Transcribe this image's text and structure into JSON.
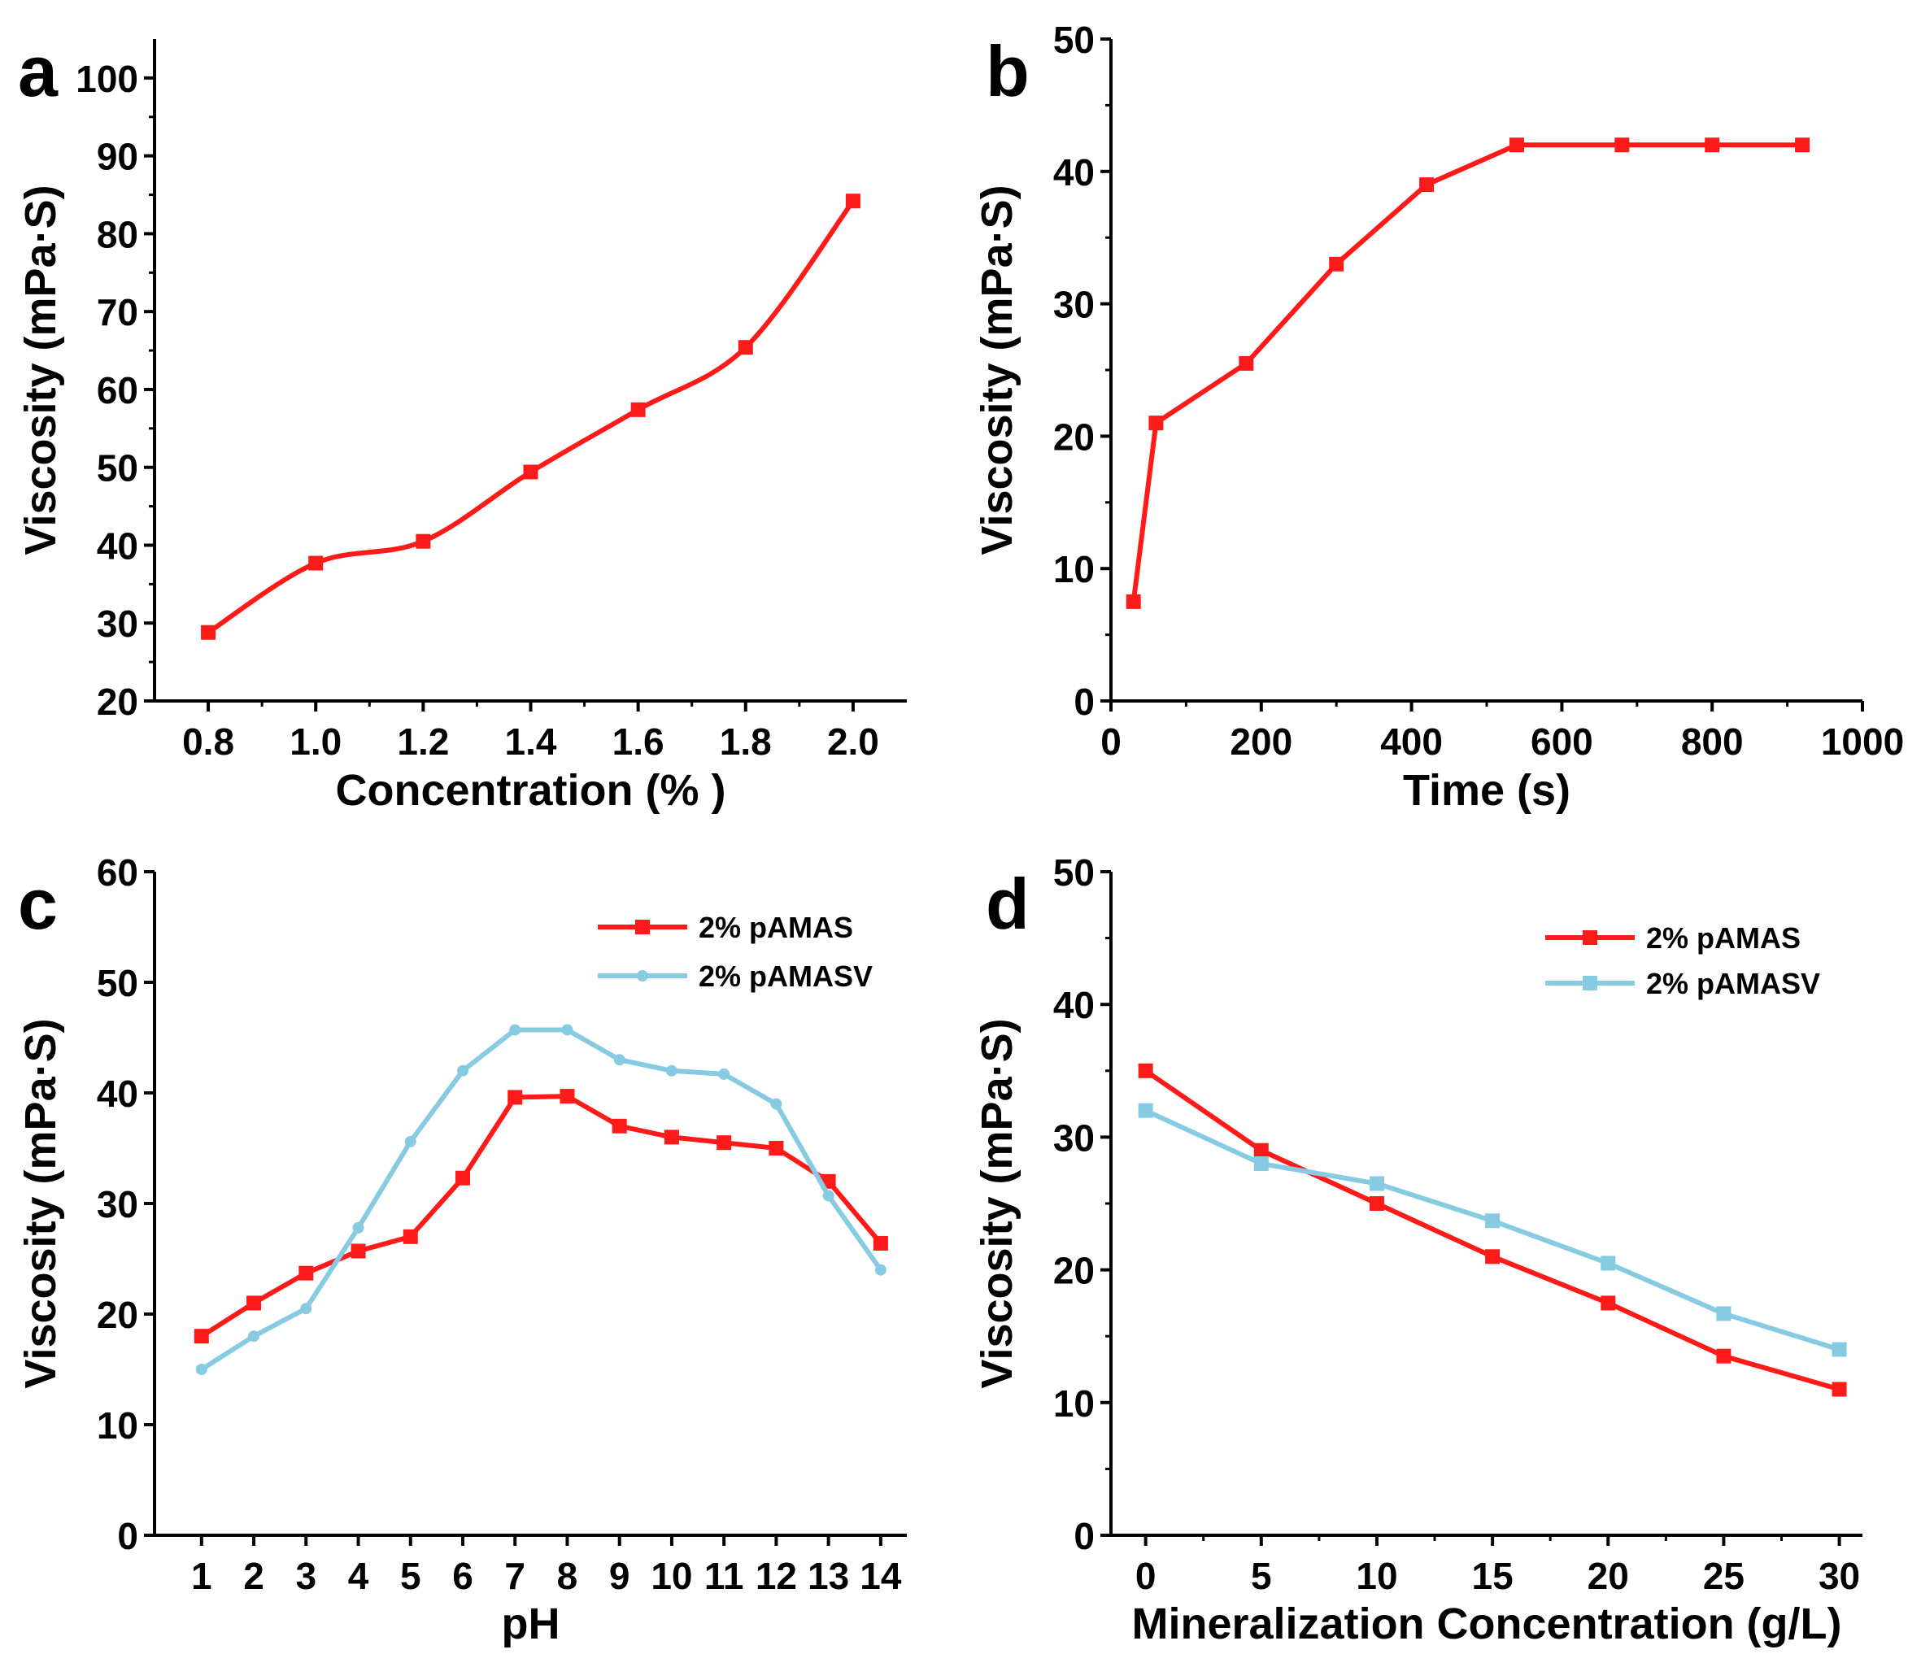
{
  "colors": {
    "red": "#ff1a1a",
    "blue": "#87cbe3",
    "axis": "#000000"
  },
  "chart_data": [
    {
      "panel": "a",
      "type": "line",
      "title": "",
      "xlabel": "Concentration (% )",
      "ylabel": "Viscosity (mPa·S)",
      "xlim": [
        0.7,
        2.1
      ],
      "ylim": [
        20,
        105
      ],
      "xticks": [
        0.8,
        1.0,
        1.2,
        1.4,
        1.6,
        1.8,
        2.0
      ],
      "xtick_labels": [
        "0.8",
        "1.0",
        "1.2",
        "1.4",
        "1.6",
        "1.8",
        "2.0"
      ],
      "yticks": [
        20,
        30,
        40,
        50,
        60,
        70,
        80,
        90,
        100
      ],
      "ytick_labels": [
        "20",
        "30",
        "40",
        "50",
        "60",
        "70",
        "80",
        "90",
        "100"
      ],
      "smooth": true,
      "legend": null,
      "series": [
        {
          "name": "",
          "color": "#ff1a1a",
          "marker": "square",
          "x": [
            0.8,
            1.0,
            1.2,
            1.4,
            1.6,
            1.8,
            2.0
          ],
          "values": [
            28.8,
            37.7,
            40.5,
            49.4,
            57.4,
            65.4,
            84.2
          ]
        }
      ]
    },
    {
      "panel": "b",
      "type": "line",
      "title": "",
      "xlabel": "Time (s)",
      "ylabel": "Viscosity (mPa·S)",
      "xlim": [
        0,
        1000
      ],
      "ylim": [
        0,
        50
      ],
      "xticks": [
        0,
        200,
        400,
        600,
        800,
        1000
      ],
      "xtick_labels": [
        "0",
        "200",
        "400",
        "600",
        "800",
        "1000"
      ],
      "yticks": [
        0,
        10,
        20,
        30,
        40,
        50
      ],
      "ytick_labels": [
        "0",
        "10",
        "20",
        "30",
        "40",
        "50"
      ],
      "smooth": false,
      "legend": null,
      "series": [
        {
          "name": "",
          "color": "#ff1a1a",
          "marker": "square",
          "x": [
            30,
            60,
            180,
            300,
            420,
            540,
            680,
            800,
            920
          ],
          "values": [
            7.5,
            21,
            25.5,
            33,
            39,
            42,
            42,
            42,
            42
          ]
        }
      ]
    },
    {
      "panel": "c",
      "type": "line",
      "title": "",
      "xlabel": "pH",
      "ylabel": "Viscosity (mPa·S)",
      "xlim": [
        0.1,
        14.5
      ],
      "ylim": [
        0,
        60
      ],
      "xticks": [
        1,
        2,
        3,
        4,
        5,
        6,
        7,
        8,
        9,
        10,
        11,
        12,
        13,
        14
      ],
      "xtick_labels": [
        "1",
        "2",
        "3",
        "4",
        "5",
        "6",
        "7",
        "8",
        "9",
        "10",
        "11",
        "12",
        "13",
        "14"
      ],
      "yticks": [
        0,
        10,
        20,
        30,
        40,
        50,
        60
      ],
      "ytick_labels": [
        "0",
        "10",
        "20",
        "30",
        "40",
        "50",
        "60"
      ],
      "smooth": false,
      "legend": "top-right",
      "series": [
        {
          "name": "2% pAMAS",
          "color": "#ff1a1a",
          "marker": "square",
          "x": [
            1,
            2,
            3,
            4,
            5,
            6,
            7,
            8,
            9,
            10,
            11,
            12,
            13,
            14
          ],
          "values": [
            18,
            21,
            23.7,
            25.7,
            27,
            32.3,
            39.6,
            39.7,
            37,
            36,
            35.5,
            35,
            32,
            26.4
          ]
        },
        {
          "name": "2% pAMASV",
          "color": "#87cbe3",
          "marker": "circle",
          "x": [
            1,
            2,
            3,
            4,
            5,
            6,
            7,
            8,
            9,
            10,
            11,
            12,
            13,
            14
          ],
          "values": [
            15,
            18,
            20.5,
            27.8,
            35.6,
            42,
            45.7,
            45.7,
            43,
            42,
            41.7,
            39,
            30.7,
            24
          ]
        }
      ]
    },
    {
      "panel": "d",
      "type": "line",
      "title": "",
      "xlabel": "Mineralization Concentration (g/L)",
      "ylabel": "Viscosity (mPa·S)",
      "xlim": [
        -1.5,
        31
      ],
      "ylim": [
        0,
        50
      ],
      "xticks": [
        0,
        5,
        10,
        15,
        20,
        25,
        30
      ],
      "xtick_labels": [
        "0",
        "5",
        "10",
        "15",
        "20",
        "25",
        "30"
      ],
      "yticks": [
        0,
        10,
        20,
        30,
        40,
        50
      ],
      "ytick_labels": [
        "0",
        "10",
        "20",
        "30",
        "40",
        "50"
      ],
      "smooth": false,
      "legend": "top-right",
      "series": [
        {
          "name": "2% pAMAS",
          "color": "#ff1a1a",
          "marker": "square",
          "x": [
            0,
            5,
            10,
            15,
            20,
            25,
            30
          ],
          "values": [
            35,
            29,
            25,
            21,
            17.5,
            13.5,
            11
          ]
        },
        {
          "name": "2% pAMASV",
          "color": "#87cbe3",
          "marker": "square",
          "x": [
            0,
            5,
            10,
            15,
            20,
            25,
            30
          ],
          "values": [
            32,
            28,
            26.5,
            23.7,
            20.5,
            16.7,
            14
          ]
        }
      ]
    }
  ]
}
